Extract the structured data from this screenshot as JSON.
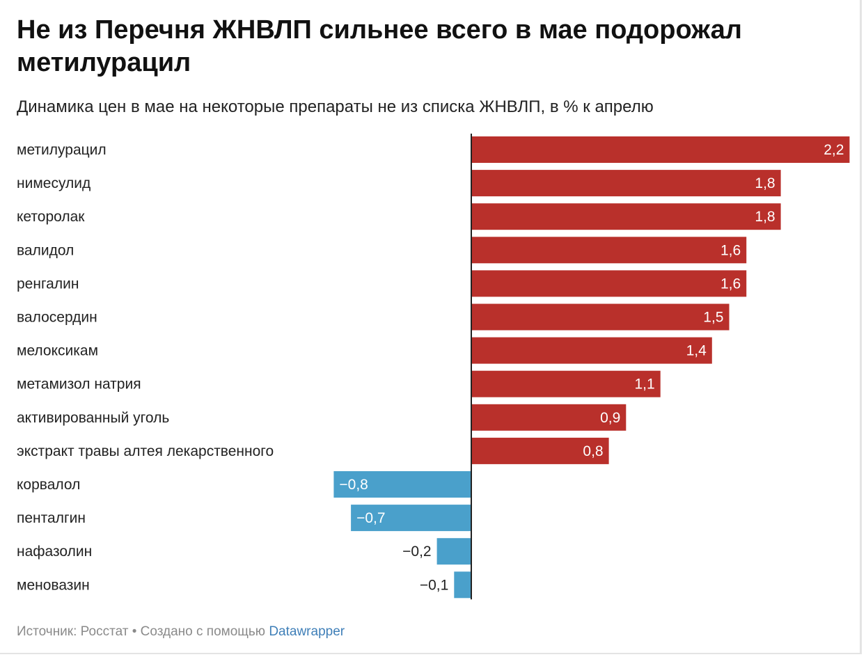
{
  "header": {
    "title": "Не из Перечня ЖНВЛП сильнее всего в мае подорожал метилурацил",
    "subtitle": "Динамика цен в мае на некоторые препараты не из списка ЖНВЛП, в % к апрелю"
  },
  "footer": {
    "source_label": "Источник: Росстат",
    "separator": "•",
    "created_label": "Создано с помощью",
    "tool_name": "Datawrapper"
  },
  "colors": {
    "positive": "#b9302b",
    "negative": "#4aa0cb",
    "axis": "#222222"
  },
  "chart_data": {
    "type": "bar",
    "orientation": "horizontal",
    "title": "Не из Перечня ЖНВЛП сильнее всего в мае подорожал метилурацил",
    "subtitle": "Динамика цен в мае на некоторые препараты не из списка ЖНВЛП, в % к апрелю",
    "categories": [
      "метилурацил",
      "нимесулид",
      "кеторолак",
      "валидол",
      "ренгалин",
      "валосердин",
      "мелоксикам",
      "метамизол натрия",
      "активированный уголь",
      "экстракт травы алтея лекарственного",
      "корвалол",
      "пенталгин",
      "нафазолин",
      "меновазин"
    ],
    "values": [
      2.2,
      1.8,
      1.8,
      1.6,
      1.6,
      1.5,
      1.4,
      1.1,
      0.9,
      0.8,
      -0.8,
      -0.7,
      -0.2,
      -0.1
    ],
    "value_labels": [
      "2,2",
      "1,8",
      "1,8",
      "1,6",
      "1,6",
      "1,5",
      "1,4",
      "1,1",
      "0,9",
      "0,8",
      "−0,8",
      "−0,7",
      "−0,2",
      "−0,1"
    ],
    "xlim": [
      -0.8,
      2.2
    ],
    "grid": false,
    "legend": "none"
  }
}
